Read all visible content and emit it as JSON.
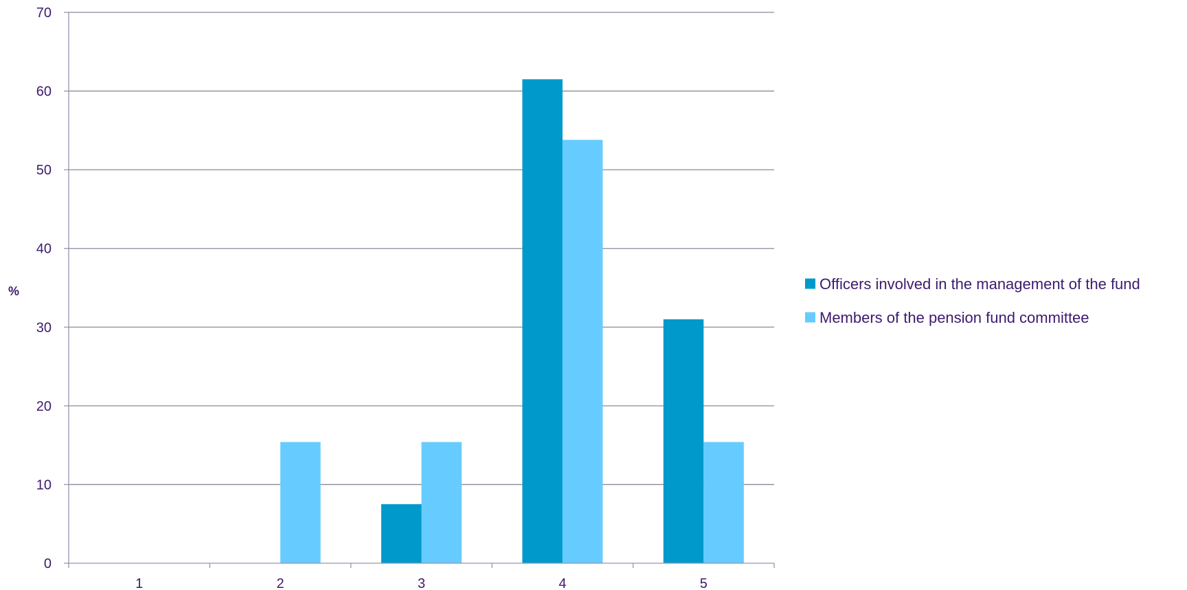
{
  "chart_data": {
    "type": "bar",
    "title": "",
    "xlabel": "",
    "ylabel": "%",
    "categories": [
      "1",
      "2",
      "3",
      "4",
      "5"
    ],
    "ylim": [
      0,
      70
    ],
    "yticks": [
      0,
      10,
      20,
      30,
      40,
      50,
      60,
      70
    ],
    "grid": true,
    "legend_position": "right",
    "series": [
      {
        "name": "Officers involved in the management of the fund",
        "color": "#0099cc",
        "values": [
          0,
          0,
          7.5,
          61.5,
          31
        ]
      },
      {
        "name": "Members of the pension fund committee",
        "color": "#66ccff",
        "values": [
          0,
          15.4,
          15.4,
          53.8,
          15.4
        ]
      }
    ],
    "colors": {
      "text": "#3d1a6e",
      "axis": "#9a93ad",
      "grid": "#8a8a9a"
    }
  }
}
